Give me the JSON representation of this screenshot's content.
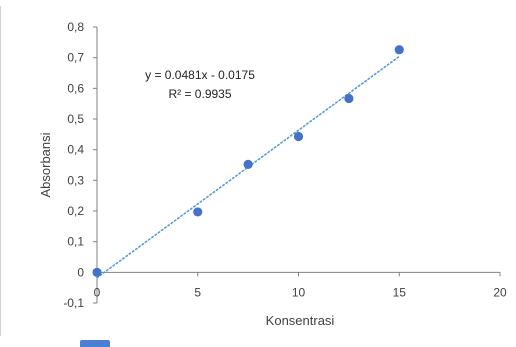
{
  "chart_data": {
    "type": "scatter",
    "xlabel": "Konsentrasi",
    "ylabel": "Absorbansi",
    "xlim": [
      0,
      20
    ],
    "ylim": [
      -0.1,
      0.8
    ],
    "x_ticks": [
      "0",
      "5",
      "10",
      "15",
      "20"
    ],
    "y_ticks": [
      "-0,1",
      "0",
      "0,1",
      "0,2",
      "0,3",
      "0,4",
      "0,5",
      "0,6",
      "0,7",
      "0,8"
    ],
    "series": [
      {
        "x": [
          0,
          5,
          7.5,
          10,
          12.5,
          15
        ],
        "y": [
          0,
          0.197,
          0.352,
          0.443,
          0.567,
          0.726
        ],
        "color": "#4472c4"
      }
    ],
    "trendline": {
      "type": "linear",
      "slope": 0.0481,
      "intercept": -0.0175,
      "x_range": [
        0,
        15
      ],
      "color": "#5b9bd5",
      "style": "dotted"
    },
    "annotations": {
      "equation": "y = 0.0481x - 0.0175",
      "r_squared": "R² = 0.9935"
    },
    "grid": false,
    "legend": "none"
  },
  "colors": {
    "marker": "#4472c4",
    "trendline": "#5b9bd5",
    "axis": "#808080"
  }
}
